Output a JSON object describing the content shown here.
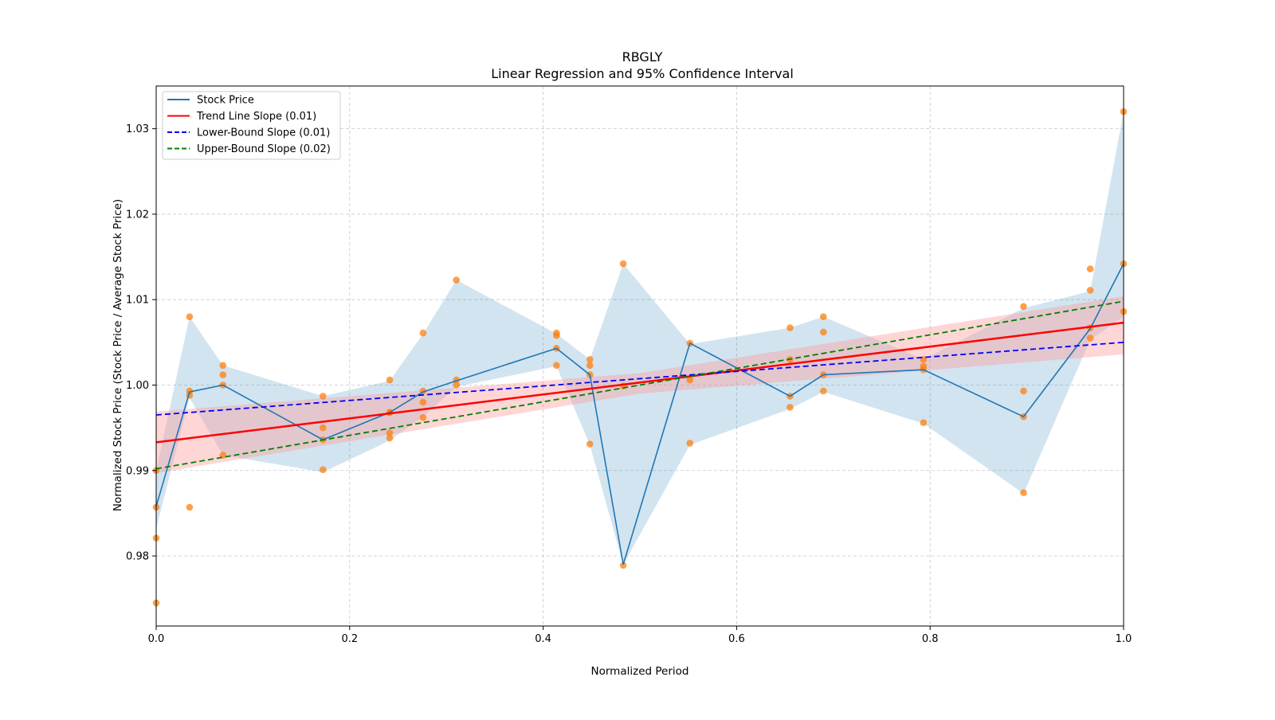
{
  "chart_data": {
    "type": "line",
    "title": "RBGLY",
    "subtitle": "Linear Regression and 95% Confidence Interval",
    "xlabel": "Normalized Period",
    "ylabel": "Normalized Stock Price (Stock Price / Average Stock Price)",
    "xlim": [
      0.0,
      1.0
    ],
    "ylim": [
      0.9718,
      1.035
    ],
    "xticks": [
      0.0,
      0.2,
      0.4,
      0.6,
      0.8,
      1.0
    ],
    "xtick_labels": [
      "0.0",
      "0.2",
      "0.4",
      "0.6",
      "0.8",
      "1.0"
    ],
    "yticks": [
      0.98,
      0.99,
      1.0,
      1.01,
      1.02,
      1.03
    ],
    "ytick_labels": [
      "0.98",
      "0.99",
      "1.00",
      "1.01",
      "1.02",
      "1.03"
    ],
    "grid": true,
    "legend_position": "top-left",
    "legend": [
      {
        "label": "Stock Price",
        "color": "#1f77b4",
        "style": "solid"
      },
      {
        "label": "Trend Line Slope (0.01)",
        "color": "#ff0000",
        "style": "solid"
      },
      {
        "label": "Lower-Bound Slope (0.01)",
        "color": "#0000ff",
        "style": "dashed"
      },
      {
        "label": "Upper-Bound Slope (0.02)",
        "color": "#008000",
        "style": "dashed"
      }
    ],
    "stock_price": {
      "x": [
        0.0,
        0.0345,
        0.069,
        0.1724,
        0.2414,
        0.2759,
        0.3103,
        0.4138,
        0.4483,
        0.4828,
        0.5517,
        0.6552,
        0.6897,
        0.7931,
        0.8966,
        0.9655,
        1.0
      ],
      "y": [
        0.9858,
        0.9992,
        1.0,
        0.9936,
        0.9968,
        0.9992,
        1.0005,
        1.0043,
        1.0012,
        0.979,
        1.0049,
        0.9987,
        1.0012,
        1.0018,
        0.9963,
        1.0066,
        1.0142
      ]
    },
    "price_band": {
      "x": [
        0.0,
        0.0345,
        0.069,
        0.1724,
        0.2414,
        0.2759,
        0.3103,
        0.4138,
        0.4483,
        0.4828,
        0.5517,
        0.6552,
        0.6897,
        0.7931,
        0.8966,
        0.9655,
        1.0
      ],
      "lower": [
        0.9832,
        0.9985,
        0.9918,
        0.9898,
        0.9935,
        0.9963,
        0.9998,
        1.0022,
        0.993,
        0.979,
        0.993,
        0.9972,
        0.9992,
        0.9955,
        0.9873,
        1.0053,
        1.008
      ],
      "upper": [
        0.99,
        1.008,
        1.0023,
        0.9987,
        1.0005,
        1.006,
        1.0123,
        1.006,
        1.003,
        1.0142,
        1.0048,
        1.0067,
        1.008,
        1.003,
        1.009,
        1.011,
        1.032
      ]
    },
    "scatter_points": {
      "x": [
        0.0,
        0.0,
        0.0,
        0.0,
        0.0345,
        0.0345,
        0.0345,
        0.0345,
        0.069,
        0.069,
        0.069,
        0.069,
        0.1724,
        0.1724,
        0.1724,
        0.1724,
        0.2414,
        0.2414,
        0.2414,
        0.2414,
        0.2414,
        0.2759,
        0.2759,
        0.2759,
        0.2759,
        0.3103,
        0.3103,
        0.3103,
        0.4138,
        0.4138,
        0.4138,
        0.4138,
        0.4483,
        0.4483,
        0.4483,
        0.4483,
        0.4828,
        0.4828,
        0.4828,
        0.5517,
        0.5517,
        0.5517,
        0.6552,
        0.6552,
        0.6552,
        0.6552,
        0.6897,
        0.6897,
        0.6897,
        0.6897,
        0.7931,
        0.7931,
        0.7931,
        0.7931,
        0.8966,
        0.8966,
        0.8966,
        0.8966,
        0.9655,
        0.9655,
        0.9655,
        0.9655,
        1.0,
        1.0,
        1.0
      ],
      "y": [
        0.99,
        0.9857,
        0.9821,
        0.9745,
        1.008,
        0.9993,
        0.9988,
        0.9857,
        1.0023,
        1.0012,
        1.0,
        0.9918,
        0.9987,
        0.995,
        0.9936,
        0.9901,
        1.0006,
        0.9968,
        0.9944,
        0.9938,
        0.9968,
        1.0061,
        0.9993,
        0.998,
        0.9962,
        1.0123,
        1.0006,
        1.0,
        1.0061,
        1.0058,
        1.0043,
        1.0023,
        1.003,
        1.0023,
        1.0012,
        0.9931,
        1.0142,
        0.9999,
        0.9789,
        1.0049,
        1.0006,
        0.9932,
        1.0067,
        1.003,
        0.9987,
        0.9974,
        1.008,
        1.0062,
        1.0012,
        0.9993,
        1.003,
        1.0022,
        1.0018,
        0.9956,
        1.0092,
        0.9993,
        0.9963,
        0.9874,
        1.0136,
        1.0111,
        1.0067,
        1.0055,
        1.032,
        1.0142,
        1.0086
      ]
    },
    "trend_line": {
      "x": [
        0.0,
        1.0
      ],
      "y": [
        0.9933,
        1.0073
      ]
    },
    "trend_ci": {
      "x": [
        0.0,
        0.5,
        1.0
      ],
      "lower": [
        0.9897,
        0.999,
        1.0036
      ],
      "upper": [
        0.9969,
        1.0014,
        1.0104
      ]
    },
    "lower_bound_line": {
      "x": [
        0.0,
        1.0
      ],
      "y": [
        0.9965,
        1.005
      ]
    },
    "upper_bound_line": {
      "x": [
        0.0,
        1.0
      ],
      "y": [
        0.9902,
        1.0098
      ]
    },
    "colors": {
      "stock": "#1f77b4",
      "band": "#1f77b4",
      "scatter": "#ff7f0e",
      "trend": "#ff0000",
      "trend_ci": "#ff9999",
      "lower": "#0000ff",
      "upper": "#008000",
      "grid": "#b0b0b0"
    }
  }
}
